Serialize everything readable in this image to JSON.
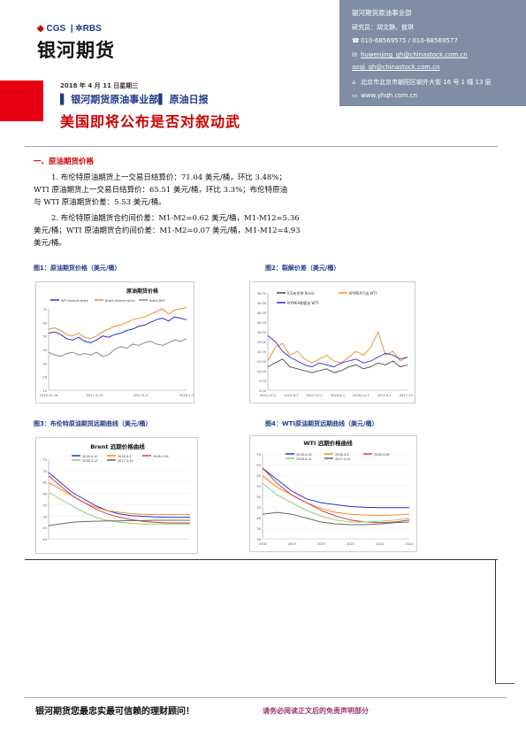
{
  "header": {
    "logo_cgs": "CGS",
    "logo_rbs": "RBS",
    "logo_name": "银河期货",
    "date": "2018 年 4 月 11 日星期三",
    "dept": "▌ 银河期货原油事业部▌ 原油日报",
    "title": "美国即将公布是否对叙动武"
  },
  "contact": {
    "org": "银河期货原油事业部",
    "analysts": "研究员：胡文静、敖琪",
    "phone": "010-68569575 / 010-68569577",
    "email1": "huwenjing_qh@chinastock.com.cn",
    "email2": "aoqi_qh@chinastock.com.cn",
    "address": "北京市北京市朝阳区朝外大街 16 号 1 幢 13 层",
    "website": "www.yhqh.com.cn",
    "icon_phone": "☎",
    "icon_mail": "✉",
    "icon_addr": "⌂",
    "icon_web": "▭"
  },
  "section": {
    "title": "一、原油期货价格",
    "para1": "1. 布伦特原油期货上一交易日结算价：71.04 美元/桶，环比 3.48%；",
    "para1b": "WTI 原油期货上一交易日结算价：65.51 美元/桶，环比 3.3%；布伦特原油",
    "para1c": "与 WTI 原油期货价差：5.53 美元/桶。",
    "para2": "2. 布伦特原油期货合约间价差：M1-M2=0.62 美元/桶，M1-M12=5.36",
    "para2b": "美元/桶；WTI 原油期货合约间价差：M1-M2=0.07 美元/桶，M1-M12=4.93",
    "para2c": "美元/桶。"
  },
  "figures": {
    "fig1_caption": "图1：原油期货价格（美元/桶）",
    "fig2_caption": "图2：裂解价差（美元/桶）",
    "fig3_caption": "图3：布伦特原油期货远期曲线（美元/桶）",
    "fig4_caption": "图4：WTI原油期货远期曲线（美元/桶）"
  },
  "footer": {
    "slogan": "银河期货您最忠实最可信赖的理财顾问！",
    "note": "请务必阅读正文后的免责声明部分"
  },
  "colors": {
    "brand_red": "#e60012",
    "brand_blue": "#1e3a8a",
    "contact_bg": "#7f8ea4"
  },
  "chart_data": [
    {
      "type": "line",
      "title": "原油期货价格",
      "legend": [
        "WTI futures price",
        "Brent futures price",
        "Brent-WTI"
      ],
      "ylim": [
        10,
        70
      ],
      "yticks": [
        "70",
        "60",
        "50",
        "40",
        "30",
        "20",
        "10"
      ],
      "xticks": [
        "2016-12-16",
        "2017-4-13",
        "2017-8-9",
        "2018-1-1"
      ],
      "series": [
        {
          "name": "WTI futures price",
          "color": "#2b2bd6",
          "values": [
            52,
            53,
            51,
            48,
            47,
            49,
            46,
            45,
            47,
            50,
            49,
            51,
            52,
            54,
            55,
            57,
            58,
            60,
            62,
            63,
            61,
            64,
            63,
            62
          ]
        },
        {
          "name": "Brent futures price",
          "color": "#f08a24",
          "values": [
            55,
            56,
            54,
            51,
            50,
            52,
            49,
            48,
            50,
            53,
            55,
            57,
            58,
            60,
            62,
            63,
            64,
            66,
            68,
            70,
            66,
            69,
            70,
            71
          ]
        },
        {
          "name": "Brent-WTI",
          "color": "#888888",
          "values": [
            38,
            36,
            35,
            37,
            38,
            36,
            37,
            36,
            38,
            35,
            36,
            40,
            42,
            41,
            44,
            43,
            45,
            46,
            44,
            43,
            45,
            47,
            46,
            48
          ]
        }
      ]
    },
    {
      "type": "line",
      "title": "",
      "legend": [
        "ICE布伦特 Brent",
        "NYMEX汽油 WTI",
        "NYMEX取暖油 WTI"
      ],
      "ylim": [
        0,
        50
      ],
      "yticks": [
        "50.00",
        "45.00",
        "40.00",
        "35.00",
        "30.00",
        "25.00",
        "20.00",
        "15.00",
        "10.00",
        "5.00",
        "0.00"
      ],
      "xticks": [
        "2014-12-1",
        "2015-6-1",
        "2015-12-1",
        "2016-6-1",
        "2016-12-1",
        "2017-6-1",
        "2017-12-1"
      ],
      "series": [
        {
          "name": "ICE布伦特 Brent",
          "color": "#444444",
          "values": [
            12,
            14,
            16,
            12,
            11,
            10,
            9,
            10,
            11,
            9,
            10,
            12,
            13,
            11,
            12,
            14,
            13,
            15,
            12,
            13
          ]
        },
        {
          "name": "NYMEX汽油 WTI",
          "color": "#f08a24",
          "values": [
            15,
            22,
            24,
            18,
            20,
            16,
            14,
            16,
            18,
            15,
            14,
            17,
            20,
            18,
            22,
            30,
            18,
            20,
            15,
            17
          ]
        },
        {
          "name": "NYMEX取暖油 WTI",
          "color": "#2b2bd6",
          "values": [
            28,
            25,
            20,
            17,
            15,
            13,
            12,
            14,
            13,
            12,
            14,
            15,
            16,
            14,
            15,
            17,
            19,
            18,
            16,
            17
          ]
        }
      ]
    },
    {
      "type": "line",
      "title": "Brent 远期价格曲线",
      "yticks": [
        "75",
        "70",
        "65",
        "60",
        "55",
        "50",
        "45",
        "40"
      ],
      "series": [
        {
          "name": "2018-4-10",
          "color": "#2b2bd6",
          "values": [
            71,
            68,
            65,
            63,
            61,
            59.5,
            58.5,
            58,
            57.8,
            57.6,
            57.5,
            57.5,
            57.5
          ]
        },
        {
          "name": "2018-4-3",
          "color": "#f08a24",
          "values": [
            68,
            66,
            64,
            62,
            60.5,
            59.5,
            59,
            58.6,
            58.4,
            58.3,
            58.3,
            58.3,
            58.3
          ]
        },
        {
          "name": "2018-3-26",
          "color": "#d04040",
          "values": [
            70,
            67,
            64,
            62,
            60,
            58.5,
            57.5,
            56.8,
            56.3,
            56,
            55.8,
            55.8,
            55.8
          ]
        },
        {
          "name": "2018-3-12",
          "color": "#8fcf6a",
          "values": [
            65,
            63,
            61,
            59,
            57.5,
            56.5,
            56,
            55.7,
            55.5,
            55.5,
            55.5,
            55.5,
            55.5
          ]
        },
        {
          "name": "2017-4-10",
          "color": "#666666",
          "values": [
            55,
            55.5,
            56,
            56.2,
            56.3,
            56.4,
            56.4,
            56.5,
            56.5,
            56.6,
            56.6,
            56.6,
            56.6
          ]
        }
      ]
    },
    {
      "type": "line",
      "title": "WTI 远期价格曲线",
      "yticks": [
        "70",
        "65",
        "60",
        "55",
        "50",
        "45",
        "40",
        "35",
        "30"
      ],
      "xticks": [
        "2018",
        "2019",
        "2020",
        "2021",
        "2022",
        "2023"
      ],
      "series": [
        {
          "name": "2018-4-10",
          "color": "#2b2bd6",
          "values": [
            65,
            62,
            59,
            57,
            56,
            55.5,
            55,
            54.8,
            54.7,
            54.7,
            54.7
          ]
        },
        {
          "name": "2018-4-3",
          "color": "#f08a24",
          "values": [
            63,
            60,
            58,
            56,
            54.5,
            53.5,
            53,
            52.8,
            52.7,
            52.8,
            53
          ]
        },
        {
          "name": "2018-3-26",
          "color": "#d04040",
          "values": [
            65,
            61,
            58,
            56,
            54,
            52.5,
            51.5,
            51,
            50.8,
            51,
            51.5
          ]
        },
        {
          "name": "2018-3-12",
          "color": "#8fcf6a",
          "values": [
            61,
            58,
            56,
            54,
            52.5,
            51.5,
            51,
            51,
            51.2,
            51.5,
            52
          ]
        },
        {
          "name": "2017-4-10",
          "color": "#666666",
          "values": [
            53,
            53.5,
            53,
            52,
            51,
            50.5,
            50.3,
            50.3,
            50.5,
            50.8,
            51
          ]
        }
      ]
    }
  ]
}
